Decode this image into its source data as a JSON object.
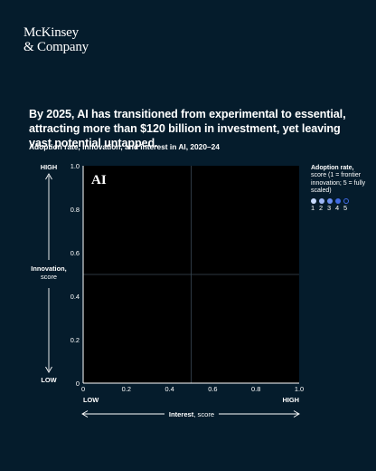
{
  "brand": {
    "line1": "McKinsey",
    "line2": "& Company"
  },
  "headline": "By 2025, AI has transitioned from experimental to essential, attracting more than $120 billion in investment, yet leaving vast potential untapped.",
  "chart_data": {
    "type": "scatter",
    "title": "Adoption rate, innovation, and interest in AI, 2020–24",
    "panel_label": "AI",
    "xlabel": "Interest",
    "xlabel_suffix": ", score",
    "ylabel": "Innovation,",
    "ylabel_suffix": "score",
    "x_low": "LOW",
    "x_high": "HIGH",
    "y_low": "LOW",
    "y_high": "HIGH",
    "xlim": [
      0,
      1.0
    ],
    "ylim": [
      0,
      1.0
    ],
    "x_ticks": [
      "0",
      "0.2",
      "0.4",
      "0.6",
      "0.8",
      "1.0"
    ],
    "y_ticks": [
      "0",
      "0.2",
      "0.4",
      "0.6",
      "0.8",
      "1.0"
    ],
    "quadrant_lines": {
      "x": 0.5,
      "y": 0.5
    },
    "series": [],
    "grid": false,
    "legend": {
      "title": "Adoption rate,",
      "subtitle": "score (1 = frontier innovation; 5 = fully scaled)",
      "placement": "top-right",
      "items": [
        {
          "label": "1",
          "color": "#c9dcff"
        },
        {
          "label": "2",
          "color": "#9fb8f7"
        },
        {
          "label": "3",
          "color": "#6a8ef0"
        },
        {
          "label": "4",
          "color": "#3f6ae3"
        },
        {
          "label": "5",
          "color": "#051c2c",
          "stroke": "#3f6ae3"
        }
      ]
    }
  },
  "colors": {
    "background": "#051c2c",
    "plot_background": "#000000",
    "axis": "#ffffff",
    "quadrant_line": "#3a4a55"
  }
}
